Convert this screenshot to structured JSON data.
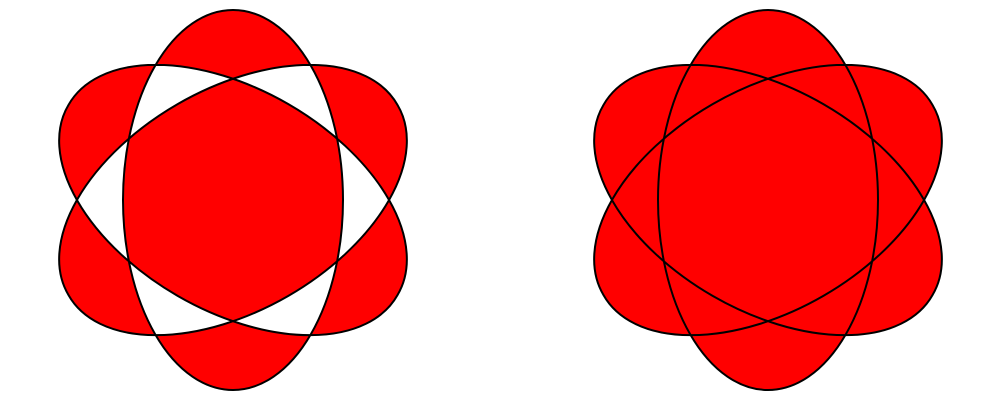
{
  "figure": {
    "background": "#ffffff",
    "fill_color": "#ff0000",
    "stroke_color": "#000000",
    "shapes": [
      {
        "name": "star-evenodd",
        "fill_rule": "evenodd"
      },
      {
        "name": "star-nonzero",
        "fill_rule": "nonzero"
      }
    ]
  }
}
